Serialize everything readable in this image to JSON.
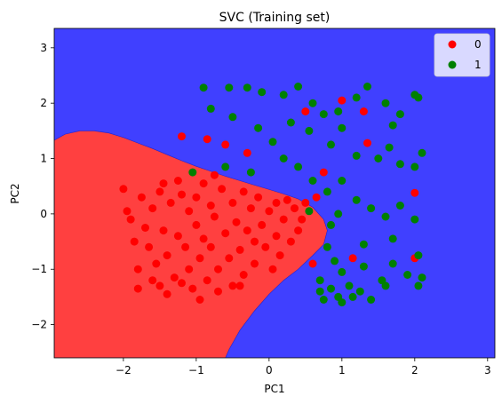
{
  "chart_data": {
    "type": "scatter",
    "title": "SVC (Training set)",
    "xlabel": "PC1",
    "ylabel": "PC2",
    "xlim": [
      -2.95,
      3.1
    ],
    "ylim": [
      -2.6,
      3.35
    ],
    "xticks": [
      -2,
      -1,
      0,
      1,
      2,
      3
    ],
    "yticks": [
      -2,
      -1,
      0,
      1,
      2,
      3
    ],
    "grid": false,
    "legend_position": "top-right",
    "colors": {
      "class_0": "#ff0000",
      "class_1": "#008000",
      "region_0": "#ff4040",
      "region_1": "#4040ff"
    },
    "decision_boundary": [
      [
        -2.95,
        1.33
      ],
      [
        -2.8,
        1.44
      ],
      [
        -2.6,
        1.5
      ],
      [
        -2.4,
        1.5
      ],
      [
        -2.2,
        1.46
      ],
      [
        -2.0,
        1.38
      ],
      [
        -1.8,
        1.28
      ],
      [
        -1.6,
        1.18
      ],
      [
        -1.4,
        1.07
      ],
      [
        -1.2,
        0.96
      ],
      [
        -1.0,
        0.86
      ],
      [
        -0.8,
        0.77
      ],
      [
        -0.6,
        0.68
      ],
      [
        -0.4,
        0.6
      ],
      [
        -0.2,
        0.52
      ],
      [
        0.0,
        0.44
      ],
      [
        0.2,
        0.36
      ],
      [
        0.4,
        0.27
      ],
      [
        0.6,
        0.12
      ],
      [
        0.75,
        -0.1
      ],
      [
        0.8,
        -0.3
      ],
      [
        0.75,
        -0.55
      ],
      [
        0.6,
        -0.75
      ],
      [
        0.4,
        -1.0
      ],
      [
        0.2,
        -1.2
      ],
      [
        0.0,
        -1.45
      ],
      [
        -0.2,
        -1.75
      ],
      [
        -0.4,
        -2.1
      ],
      [
        -0.55,
        -2.45
      ],
      [
        -0.6,
        -2.6
      ]
    ],
    "series": [
      {
        "name": "0",
        "points": [
          [
            -2.0,
            0.45
          ],
          [
            -1.95,
            0.05
          ],
          [
            -1.85,
            -0.5
          ],
          [
            -1.8,
            -1.0
          ],
          [
            -1.75,
            0.3
          ],
          [
            -1.7,
            -0.25
          ],
          [
            -1.65,
            -0.6
          ],
          [
            -1.6,
            0.1
          ],
          [
            -1.55,
            -0.9
          ],
          [
            -1.5,
            0.4
          ],
          [
            -1.5,
            -1.3
          ],
          [
            -1.45,
            -0.3
          ],
          [
            -1.4,
            -0.75
          ],
          [
            -1.35,
            0.2
          ],
          [
            -1.3,
            -1.15
          ],
          [
            -1.25,
            -0.4
          ],
          [
            -1.2,
            0.35
          ],
          [
            -1.15,
            -0.6
          ],
          [
            -1.1,
            0.05
          ],
          [
            -1.1,
            -1.0
          ],
          [
            -1.05,
            -1.35
          ],
          [
            -1.0,
            0.3
          ],
          [
            -1.0,
            -0.2
          ],
          [
            -0.95,
            -0.8
          ],
          [
            -0.9,
            0.55
          ],
          [
            -0.9,
            -0.45
          ],
          [
            -0.85,
            -1.2
          ],
          [
            -0.8,
            0.15
          ],
          [
            -0.8,
            -0.6
          ],
          [
            -0.75,
            -0.05
          ],
          [
            -0.7,
            -1.0
          ],
          [
            -0.65,
            0.45
          ],
          [
            -0.6,
            -0.35
          ],
          [
            -0.55,
            -0.8
          ],
          [
            -0.5,
            0.2
          ],
          [
            -0.5,
            -1.3
          ],
          [
            -0.45,
            -0.15
          ],
          [
            -0.4,
            -0.65
          ],
          [
            -0.35,
            0.4
          ],
          [
            -0.35,
            -1.1
          ],
          [
            -0.3,
            -0.3
          ],
          [
            -0.25,
            0.1
          ],
          [
            -0.2,
            -0.9
          ],
          [
            -0.2,
            -0.5
          ],
          [
            -0.15,
            0.3
          ],
          [
            -0.1,
            -0.2
          ],
          [
            -0.05,
            -0.6
          ],
          [
            0.0,
            0.05
          ],
          [
            0.05,
            -1.0
          ],
          [
            0.1,
            0.2
          ],
          [
            0.1,
            -0.4
          ],
          [
            0.15,
            -0.75
          ],
          [
            0.2,
            -0.1
          ],
          [
            0.25,
            0.25
          ],
          [
            0.3,
            -0.5
          ],
          [
            0.35,
            0.1
          ],
          [
            0.4,
            -0.3
          ],
          [
            0.45,
            -0.1
          ],
          [
            0.5,
            0.2
          ],
          [
            -1.8,
            -1.35
          ],
          [
            -1.6,
            -1.2
          ],
          [
            -1.4,
            -1.45
          ],
          [
            -1.2,
            -1.25
          ],
          [
            -0.95,
            -1.55
          ],
          [
            -0.7,
            -1.4
          ],
          [
            -0.4,
            -1.3
          ],
          [
            -1.9,
            -0.1
          ],
          [
            -1.45,
            0.55
          ],
          [
            -1.25,
            0.6
          ],
          [
            -0.75,
            0.7
          ],
          [
            -0.6,
            1.25
          ],
          [
            -1.2,
            1.4
          ],
          [
            -0.85,
            1.35
          ],
          [
            -0.3,
            1.1
          ],
          [
            0.5,
            1.85
          ],
          [
            1.0,
            2.05
          ],
          [
            1.3,
            1.85
          ],
          [
            1.35,
            1.28
          ],
          [
            0.75,
            0.75
          ],
          [
            0.65,
            0.3
          ],
          [
            1.15,
            -0.8
          ],
          [
            2.0,
            0.38
          ],
          [
            2.0,
            -0.8
          ],
          [
            0.6,
            -0.9
          ]
        ]
      },
      {
        "name": "1",
        "points": [
          [
            -0.9,
            2.28
          ],
          [
            -0.55,
            2.28
          ],
          [
            -0.3,
            2.28
          ],
          [
            -0.1,
            2.2
          ],
          [
            0.2,
            2.15
          ],
          [
            0.4,
            2.3
          ],
          [
            0.6,
            2.0
          ],
          [
            0.75,
            1.8
          ],
          [
            0.95,
            1.85
          ],
          [
            1.2,
            2.1
          ],
          [
            1.35,
            2.3
          ],
          [
            1.6,
            2.0
          ],
          [
            1.7,
            1.6
          ],
          [
            1.8,
            1.8
          ],
          [
            2.0,
            2.15
          ],
          [
            2.05,
            2.1
          ],
          [
            -0.8,
            1.9
          ],
          [
            -0.5,
            1.75
          ],
          [
            -0.15,
            1.55
          ],
          [
            0.05,
            1.3
          ],
          [
            0.3,
            1.65
          ],
          [
            0.55,
            1.5
          ],
          [
            0.85,
            1.25
          ],
          [
            1.0,
            1.55
          ],
          [
            1.2,
            1.05
          ],
          [
            1.5,
            1.0
          ],
          [
            1.65,
            1.2
          ],
          [
            1.8,
            0.9
          ],
          [
            2.0,
            0.85
          ],
          [
            2.1,
            1.1
          ],
          [
            -1.05,
            0.75
          ],
          [
            -0.6,
            0.85
          ],
          [
            -0.25,
            0.75
          ],
          [
            0.2,
            1.0
          ],
          [
            0.4,
            0.85
          ],
          [
            0.6,
            0.6
          ],
          [
            0.8,
            0.4
          ],
          [
            1.0,
            0.6
          ],
          [
            1.2,
            0.25
          ],
          [
            1.4,
            0.1
          ],
          [
            1.6,
            -0.05
          ],
          [
            1.8,
            0.15
          ],
          [
            2.0,
            -0.1
          ],
          [
            0.8,
            -0.6
          ],
          [
            0.9,
            -0.85
          ],
          [
            1.0,
            -1.05
          ],
          [
            1.1,
            -1.3
          ],
          [
            1.25,
            -1.4
          ],
          [
            0.7,
            -1.2
          ],
          [
            0.85,
            -1.35
          ],
          [
            0.95,
            -1.5
          ],
          [
            1.3,
            -0.95
          ],
          [
            1.55,
            -1.2
          ],
          [
            1.7,
            -0.9
          ],
          [
            1.9,
            -1.1
          ],
          [
            2.1,
            -1.15
          ],
          [
            2.05,
            -1.3
          ],
          [
            1.6,
            -1.3
          ],
          [
            0.7,
            -1.4
          ],
          [
            0.75,
            -1.55
          ],
          [
            1.0,
            -1.6
          ],
          [
            1.15,
            -1.5
          ],
          [
            1.4,
            -1.55
          ],
          [
            0.85,
            -0.2
          ],
          [
            0.55,
            0.05
          ],
          [
            0.95,
            0.0
          ],
          [
            1.3,
            -0.55
          ],
          [
            1.7,
            -0.45
          ],
          [
            2.05,
            -0.75
          ]
        ]
      }
    ]
  }
}
